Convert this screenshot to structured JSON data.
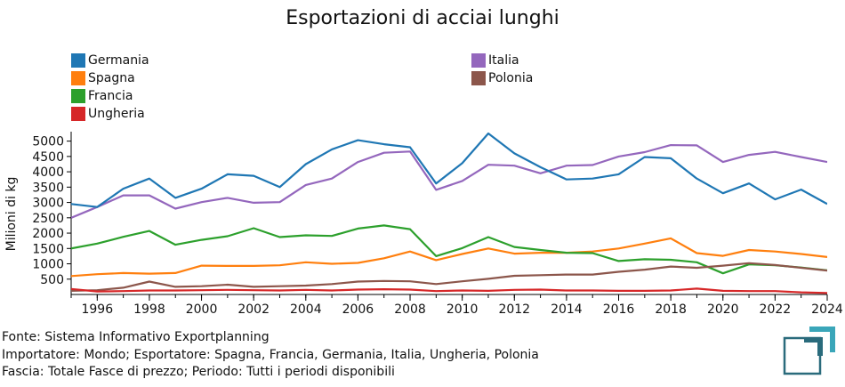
{
  "chart_data": {
    "type": "line",
    "title": "Esportazioni di acciai lunghi",
    "ylabel": "Milioni di kg",
    "xlabel": "",
    "xlim": [
      1995,
      2024
    ],
    "ylim": [
      0,
      5250
    ],
    "x_ticks": [
      1996,
      1998,
      2000,
      2002,
      2004,
      2006,
      2008,
      2010,
      2012,
      2014,
      2016,
      2018,
      2020,
      2022,
      2024
    ],
    "y_ticks": [
      500,
      1000,
      1500,
      2000,
      2500,
      3000,
      3500,
      4000,
      4500,
      5000
    ],
    "x": [
      1995,
      1996,
      1997,
      1998,
      1999,
      2000,
      2001,
      2002,
      2003,
      2004,
      2005,
      2006,
      2007,
      2008,
      2009,
      2010,
      2011,
      2012,
      2013,
      2014,
      2015,
      2016,
      2017,
      2018,
      2019,
      2020,
      2021,
      2022,
      2023,
      2024
    ],
    "legend_position": "top",
    "series": [
      {
        "name": "Germania",
        "color": "#1f77b4",
        "values": [
          2950,
          2850,
          3450,
          3780,
          3150,
          3450,
          3920,
          3870,
          3500,
          4250,
          4730,
          5030,
          4900,
          4800,
          3620,
          4280,
          5250,
          4600,
          4150,
          3750,
          3780,
          3920,
          4480,
          4440,
          3780,
          3300,
          3620,
          3100,
          3420,
          2950
        ]
      },
      {
        "name": "Spagna",
        "color": "#ff7f0e",
        "values": [
          600,
          660,
          700,
          680,
          700,
          940,
          930,
          930,
          950,
          1050,
          1000,
          1030,
          1180,
          1400,
          1120,
          1320,
          1500,
          1330,
          1360,
          1360,
          1400,
          1500,
          1660,
          1830,
          1350,
          1260,
          1450,
          1400,
          1320,
          1220
        ]
      },
      {
        "name": "Francia",
        "color": "#2ca02c",
        "values": [
          1500,
          1660,
          1880,
          2070,
          1620,
          1780,
          1900,
          2160,
          1870,
          1930,
          1910,
          2150,
          2250,
          2130,
          1250,
          1510,
          1870,
          1550,
          1450,
          1360,
          1350,
          1090,
          1150,
          1130,
          1050,
          690,
          980,
          950,
          880,
          790
        ]
      },
      {
        "name": "Ungheria",
        "color": "#d62728",
        "values": [
          180,
          100,
          110,
          130,
          130,
          140,
          150,
          140,
          130,
          150,
          130,
          160,
          170,
          160,
          110,
          130,
          120,
          150,
          160,
          130,
          130,
          120,
          120,
          130,
          190,
          120,
          110,
          110,
          70,
          50
        ]
      },
      {
        "name": "Italia",
        "color": "#9467bd",
        "values": [
          2500,
          2850,
          3230,
          3230,
          2800,
          3010,
          3150,
          2990,
          3010,
          3570,
          3780,
          4320,
          4620,
          4660,
          3410,
          3700,
          4230,
          4200,
          3950,
          4200,
          4220,
          4500,
          4640,
          4870,
          4860,
          4320,
          4550,
          4650,
          4480,
          4320
        ]
      },
      {
        "name": "Polonia",
        "color": "#8c564b",
        "values": [
          120,
          140,
          220,
          420,
          250,
          270,
          320,
          250,
          270,
          290,
          340,
          420,
          440,
          430,
          340,
          430,
          510,
          610,
          630,
          650,
          650,
          740,
          810,
          910,
          870,
          940,
          1020,
          960,
          870,
          780
        ]
      }
    ]
  },
  "footer": {
    "line1": "Fonte: Sistema Informativo Exportplanning",
    "line2": "Importatore: Mondo; Esportatore: Spagna, Francia, Germania, Italia, Ungheria, Polonia",
    "line3": "Fascia: Totale Fasce di prezzo; Periodo: Tutti i periodi disponibili"
  },
  "logo": {
    "colors": [
      "#2a6b7c",
      "#3aa6b9"
    ]
  }
}
